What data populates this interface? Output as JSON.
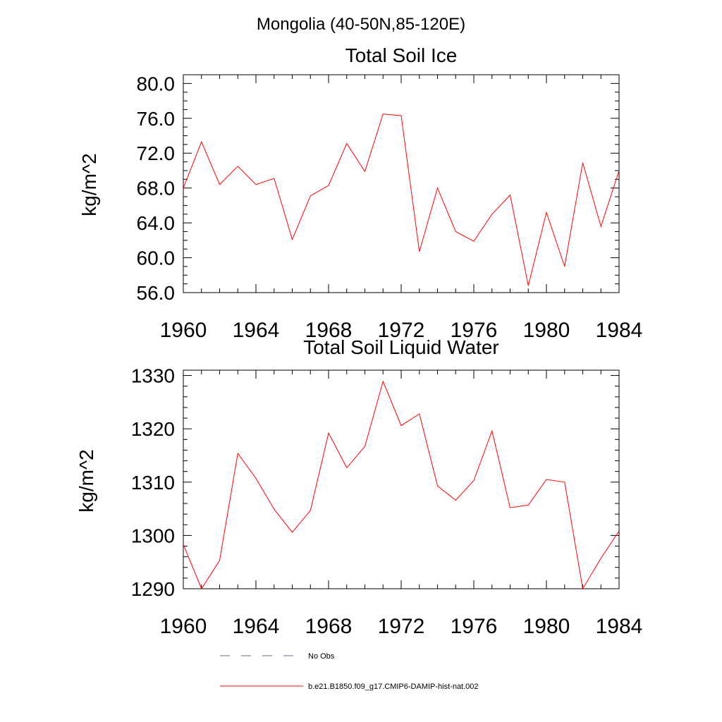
{
  "figure": {
    "title": "Mongolia (40-50N,85-120E)"
  },
  "chart_data": [
    {
      "type": "line",
      "title": "Total Soil Ice",
      "xlabel": "",
      "ylabel": "kg/m^2",
      "xlim": [
        1960,
        1984
      ],
      "ylim": [
        56,
        81
      ],
      "xticks": [
        "1960",
        "1964",
        "1968",
        "1972",
        "1976",
        "1980",
        "1984"
      ],
      "yticks": [
        "56.0",
        "60.0",
        "64.0",
        "68.0",
        "72.0",
        "76.0",
        "80.0"
      ],
      "grid": false,
      "x": [
        1960,
        1961,
        1962,
        1963,
        1964,
        1965,
        1966,
        1967,
        1968,
        1969,
        1970,
        1971,
        1972,
        1973,
        1974,
        1975,
        1976,
        1977,
        1978,
        1979,
        1980,
        1981,
        1982,
        1983,
        1984
      ],
      "series": [
        {
          "name": "b.e21.B1850.f09_g17.CMIP6-DAMIP-hist-nat.002",
          "color": "#ff0000",
          "values": [
            68.0,
            73.3,
            68.4,
            70.5,
            68.4,
            69.1,
            62.1,
            67.1,
            68.3,
            73.1,
            69.9,
            76.5,
            76.3,
            60.7,
            68.0,
            63.0,
            61.9,
            65.0,
            67.2,
            56.8,
            65.2,
            59.0,
            70.9,
            63.6,
            70.0
          ]
        }
      ]
    },
    {
      "type": "line",
      "title": "Total Soil Liquid Water",
      "xlabel": "",
      "ylabel": "kg/m^2",
      "xlim": [
        1960,
        1984
      ],
      "ylim": [
        1290,
        1331
      ],
      "xticks": [
        "1960",
        "1964",
        "1968",
        "1972",
        "1976",
        "1980",
        "1984"
      ],
      "yticks": [
        "1290",
        "1300",
        "1310",
        "1320",
        "1330"
      ],
      "grid": false,
      "x": [
        1960,
        1961,
        1962,
        1963,
        1964,
        1965,
        1966,
        1967,
        1968,
        1969,
        1970,
        1971,
        1972,
        1973,
        1974,
        1975,
        1976,
        1977,
        1978,
        1979,
        1980,
        1981,
        1982,
        1983,
        1984
      ],
      "series": [
        {
          "name": "b.e21.B1850.f09_g17.CMIP6-DAMIP-hist-nat.002",
          "color": "#ff0000",
          "values": [
            1298.3,
            1290.0,
            1295.3,
            1315.4,
            1310.7,
            1304.9,
            1300.6,
            1304.7,
            1319.2,
            1312.7,
            1316.7,
            1328.9,
            1320.6,
            1322.8,
            1309.3,
            1306.6,
            1310.3,
            1319.6,
            1305.2,
            1305.7,
            1310.5,
            1310.0,
            1290.0,
            1295.7,
            1300.8
          ]
        }
      ]
    }
  ],
  "legend": {
    "placement": "bottom-left",
    "items": [
      {
        "label": "No Obs",
        "style": "dashed",
        "color": "#6b6b8a"
      },
      {
        "label": "b.e21.B1850.f09_g17.CMIP6-DAMIP-hist-nat.002",
        "style": "solid",
        "color": "#ff0000"
      }
    ]
  }
}
